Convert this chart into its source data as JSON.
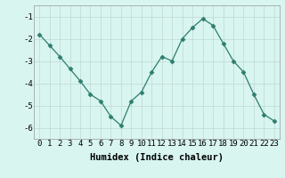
{
  "x": [
    0,
    1,
    2,
    3,
    4,
    5,
    6,
    7,
    8,
    9,
    10,
    11,
    12,
    13,
    14,
    15,
    16,
    17,
    18,
    19,
    20,
    21,
    22,
    23
  ],
  "y": [
    -1.8,
    -2.3,
    -2.8,
    -3.35,
    -3.9,
    -4.5,
    -4.8,
    -5.5,
    -5.9,
    -4.8,
    -4.4,
    -3.5,
    -2.8,
    -3.0,
    -2.0,
    -1.5,
    -1.1,
    -1.4,
    -2.2,
    -3.0,
    -3.5,
    -4.5,
    -5.4,
    -5.7
  ],
  "line_color": "#2e7d6e",
  "marker": "D",
  "marker_size": 2.5,
  "bg_color": "#d8f5f0",
  "grid_color": "#c0d8d4",
  "xlabel": "Humidex (Indice chaleur)",
  "ylabel": "",
  "xlim": [
    -0.5,
    23.5
  ],
  "ylim": [
    -6.5,
    -0.5
  ],
  "yticks": [
    -6,
    -5,
    -4,
    -3,
    -2,
    -1
  ],
  "xticks": [
    0,
    1,
    2,
    3,
    4,
    5,
    6,
    7,
    8,
    9,
    10,
    11,
    12,
    13,
    14,
    15,
    16,
    17,
    18,
    19,
    20,
    21,
    22,
    23
  ],
  "tick_fontsize": 6.5,
  "xlabel_fontsize": 7.5
}
